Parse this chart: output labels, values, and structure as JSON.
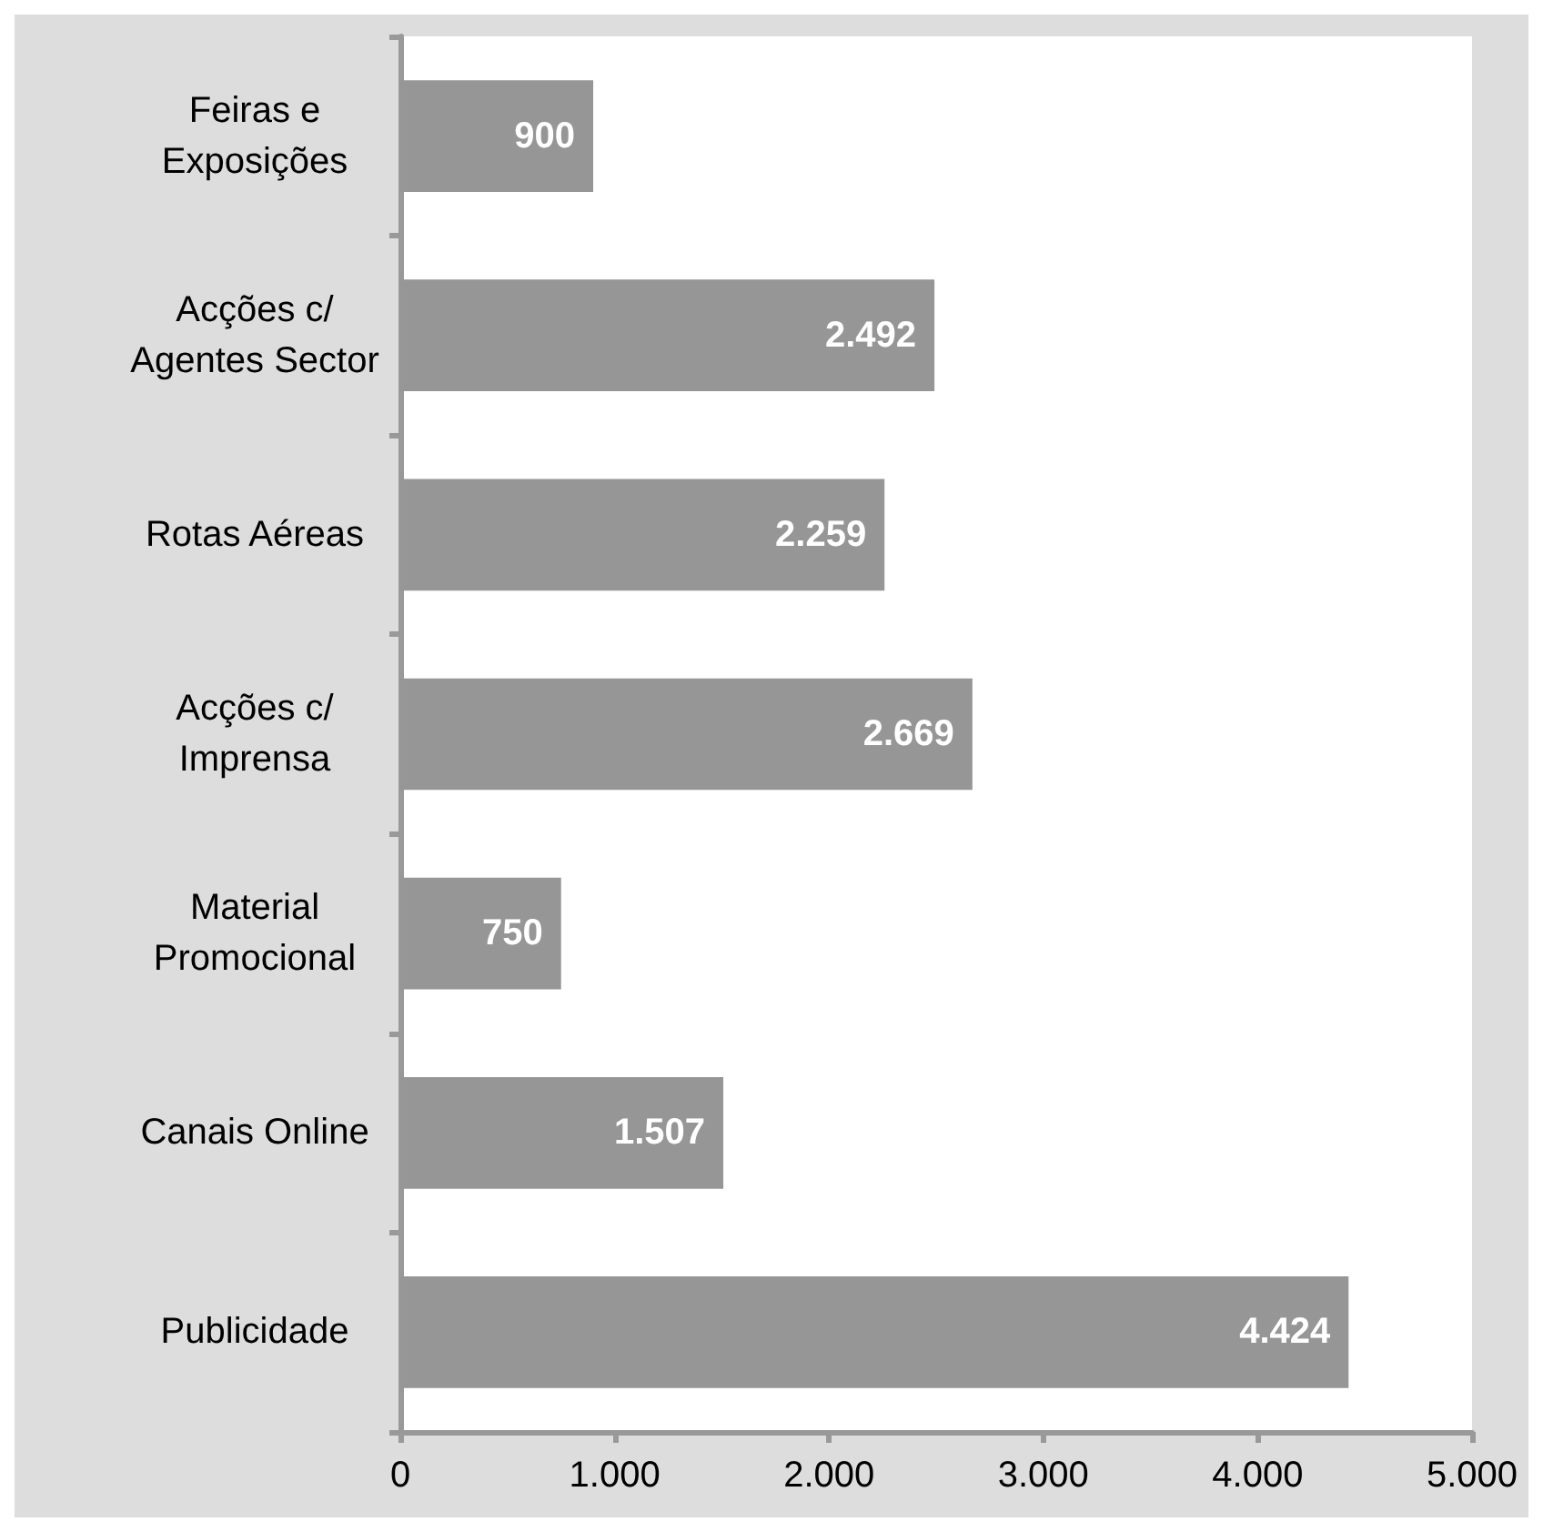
{
  "chart_data": {
    "type": "bar",
    "orientation": "horizontal",
    "categories": [
      "Feiras e\nExposições",
      "Acções c/\nAgentes Sector",
      "Rotas Aéreas",
      "Acções c/\nImprensa",
      "Material\nPromocional",
      "Canais Online",
      "Publicidade"
    ],
    "values": [
      900,
      2492,
      2259,
      2669,
      750,
      1507,
      4424
    ],
    "value_labels": [
      "900",
      "2.492",
      "2.259",
      "2.669",
      "750",
      "1.507",
      "4.424"
    ],
    "color": "#969696",
    "xlim": [
      0,
      5000
    ],
    "xticks": [
      {
        "value": 0,
        "label": "0"
      },
      {
        "value": 1000,
        "label": "1.000"
      },
      {
        "value": 2000,
        "label": "2.000"
      },
      {
        "value": 3000,
        "label": "3.000"
      },
      {
        "value": 4000,
        "label": "4.000"
      },
      {
        "value": 5000,
        "label": "5.000"
      }
    ],
    "grid": false
  }
}
